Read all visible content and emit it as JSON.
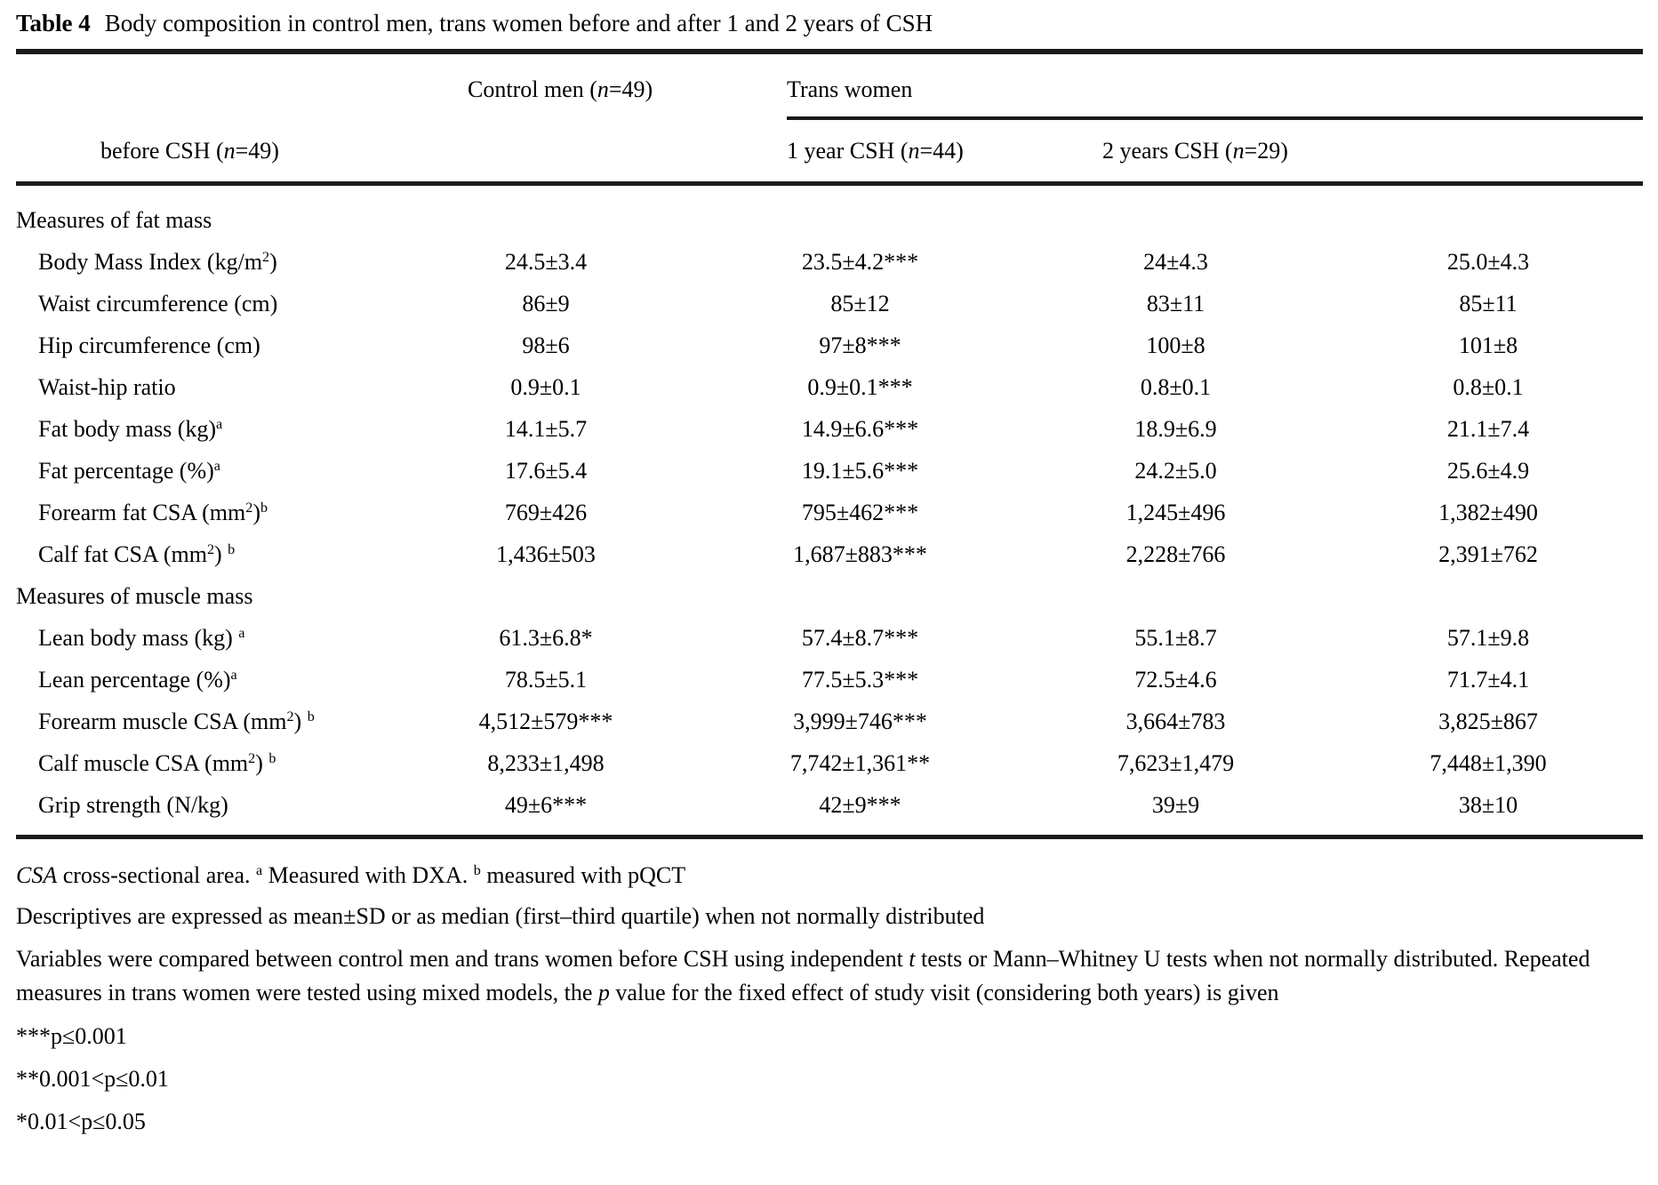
{
  "colors": {
    "text": "#000000",
    "rule": "#1a1a1a",
    "background": "#ffffff"
  },
  "title": {
    "label": "Table 4",
    "text": "Body composition in control men, trans women before and after 1 and 2 years of CSH"
  },
  "table": {
    "header": {
      "control": [
        {
          "t": "Control men ("
        },
        {
          "t": "n",
          "i": true
        },
        {
          "t": "=49)"
        }
      ],
      "group": [
        {
          "t": "Trans women"
        }
      ],
      "sub": [
        [
          {
            "t": "before CSH ("
          },
          {
            "t": "n",
            "i": true
          },
          {
            "t": "=49)"
          }
        ],
        [
          {
            "t": "1 year CSH ("
          },
          {
            "t": "n",
            "i": true
          },
          {
            "t": "=44)"
          }
        ],
        [
          {
            "t": "2 years CSH ("
          },
          {
            "t": "n",
            "i": true
          },
          {
            "t": "=29)"
          }
        ]
      ]
    },
    "rows": [
      {
        "type": "section",
        "label": [
          {
            "t": "Measures of fat mass"
          }
        ]
      },
      {
        "type": "data",
        "label": [
          {
            "t": "Body Mass Index (kg/m"
          },
          {
            "t": "2",
            "sup": true
          },
          {
            "t": ")"
          }
        ],
        "values": [
          "24.5±3.4",
          "23.5±4.2***",
          "24±4.3",
          "25.0±4.3"
        ]
      },
      {
        "type": "data",
        "label": [
          {
            "t": "Waist circumference (cm)"
          }
        ],
        "values": [
          "86±9",
          "85±12",
          "83±11",
          "85±11"
        ]
      },
      {
        "type": "data",
        "label": [
          {
            "t": "Hip circumference (cm)"
          }
        ],
        "values": [
          "98±6",
          "97±8***",
          "100±8",
          "101±8"
        ]
      },
      {
        "type": "data",
        "label": [
          {
            "t": "Waist-hip ratio"
          }
        ],
        "values": [
          "0.9±0.1",
          "0.9±0.1***",
          "0.8±0.1",
          "0.8±0.1"
        ]
      },
      {
        "type": "data",
        "label": [
          {
            "t": "Fat body mass (kg)"
          },
          {
            "t": "a",
            "sup": true
          }
        ],
        "values": [
          "14.1±5.7",
          "14.9±6.6***",
          "18.9±6.9",
          "21.1±7.4"
        ]
      },
      {
        "type": "data",
        "label": [
          {
            "t": "Fat percentage (%)"
          },
          {
            "t": "a",
            "sup": true
          }
        ],
        "values": [
          "17.6±5.4",
          "19.1±5.6***",
          "24.2±5.0",
          "25.6±4.9"
        ]
      },
      {
        "type": "data",
        "label": [
          {
            "t": "Forearm fat CSA (mm"
          },
          {
            "t": "2",
            "sup": true
          },
          {
            "t": ")"
          },
          {
            "t": "b",
            "sup": true
          }
        ],
        "values": [
          "769±426",
          "795±462***",
          "1,245±496",
          "1,382±490"
        ]
      },
      {
        "type": "data",
        "label": [
          {
            "t": "Calf fat CSA (mm"
          },
          {
            "t": "2",
            "sup": true
          },
          {
            "t": ") "
          },
          {
            "t": "b",
            "sup": true
          }
        ],
        "values": [
          "1,436±503",
          "1,687±883***",
          "2,228±766",
          "2,391±762"
        ]
      },
      {
        "type": "section",
        "label": [
          {
            "t": "Measures of muscle mass"
          }
        ]
      },
      {
        "type": "data",
        "label": [
          {
            "t": "Lean body mass (kg) "
          },
          {
            "t": "a",
            "sup": true
          }
        ],
        "values": [
          "61.3±6.8*",
          "57.4±8.7***",
          "55.1±8.7",
          "57.1±9.8"
        ]
      },
      {
        "type": "data",
        "label": [
          {
            "t": "Lean percentage (%)"
          },
          {
            "t": "a",
            "sup": true
          }
        ],
        "values": [
          "78.5±5.1",
          "77.5±5.3***",
          "72.5±4.6",
          "71.7±4.1"
        ]
      },
      {
        "type": "data",
        "label": [
          {
            "t": "Forearm muscle CSA (mm"
          },
          {
            "t": "2",
            "sup": true
          },
          {
            "t": ") "
          },
          {
            "t": "b",
            "sup": true
          }
        ],
        "values": [
          "4,512±579***",
          "3,999±746***",
          "3,664±783",
          "3,825±867"
        ]
      },
      {
        "type": "data",
        "label": [
          {
            "t": "Calf muscle CSA (mm"
          },
          {
            "t": "2",
            "sup": true
          },
          {
            "t": ") "
          },
          {
            "t": "b",
            "sup": true
          }
        ],
        "values": [
          "8,233±1,498",
          "7,742±1,361**",
          "7,623±1,479",
          "7,448±1,390"
        ]
      },
      {
        "type": "data",
        "label": [
          {
            "t": "Grip strength (N/kg)"
          }
        ],
        "values": [
          "49±6***",
          "42±9***",
          "39±9",
          "38±10"
        ]
      }
    ]
  },
  "footnotes": [
    [
      {
        "t": "CSA",
        "i": true
      },
      {
        "t": " cross-sectional area. "
      },
      {
        "t": "a",
        "sup": true
      },
      {
        "t": " Measured with DXA. "
      },
      {
        "t": "b",
        "sup": true
      },
      {
        "t": " measured with pQCT"
      }
    ],
    [
      {
        "t": "Descriptives are expressed as mean±SD or as median (first–third quartile) when not normally distributed"
      }
    ],
    [
      {
        "t": "Variables were compared between control men and trans women before CSH using independent "
      },
      {
        "t": "t",
        "i": true
      },
      {
        "t": " tests or Mann–Whitney U tests when not normally distributed. Repeated measures in trans women were tested using mixed models, the "
      },
      {
        "t": "p",
        "i": true
      },
      {
        "t": " value for the fixed effect of study visit (considering both years) is given"
      }
    ],
    [
      {
        "t": "***p≤0.001"
      }
    ],
    [
      {
        "t": "**0.001<p≤0.01"
      }
    ],
    [
      {
        "t": "*0.01<p≤0.05"
      }
    ]
  ]
}
